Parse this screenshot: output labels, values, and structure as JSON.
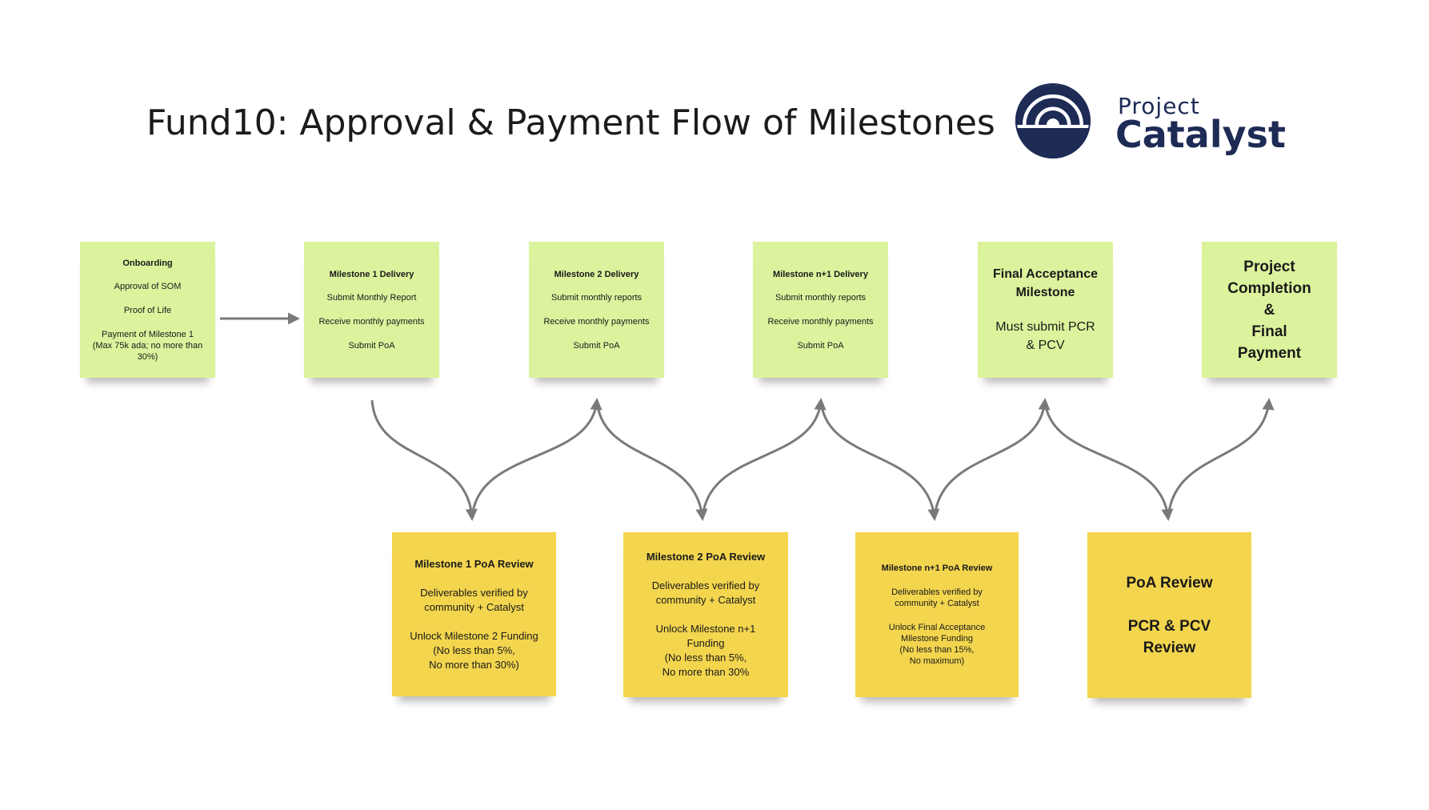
{
  "title": "Fund10: Approval & Payment Flow of Milestones",
  "logo": {
    "small": "Project",
    "big": "Catalyst",
    "color": "#1d2b55"
  },
  "colors": {
    "green_note": "#dcf39d",
    "yellow_note": "#f3d54e",
    "arrow": "#7a7a7a"
  },
  "top_notes": [
    {
      "title": "Onboarding",
      "lines": [
        "Approval of SOM",
        "Proof of Life",
        "Payment of Milestone 1\n(Max 75k ada; no more than 30%)"
      ]
    },
    {
      "title": "Milestone 1 Delivery",
      "lines": [
        "Submit Monthly Report",
        "Receive monthly payments",
        "Submit PoA"
      ]
    },
    {
      "title": "Milestone 2 Delivery",
      "lines": [
        "Submit monthly reports",
        "Receive monthly payments",
        "Submit PoA"
      ]
    },
    {
      "title": "Milestone n+1 Delivery",
      "lines": [
        "Submit monthly reports",
        "Receive monthly payments",
        "Submit PoA"
      ]
    },
    {
      "title": "Final Acceptance Milestone",
      "lines": [
        "Must submit PCR & PCV"
      ]
    },
    {
      "title": "Project Completion & Final Payment"
    }
  ],
  "bottom_notes": [
    {
      "title": "Milestone 1 PoA Review",
      "lines": [
        "Deliverables verified by community + Catalyst",
        "Unlock Milestone 2 Funding\n(No less than 5%,\nNo more than 30%)"
      ]
    },
    {
      "title": "Milestone 2 PoA Review",
      "lines": [
        "Deliverables verified by community + Catalyst",
        "Unlock Milestone n+1 Funding\n(No less than 5%,\nNo more than 30%"
      ]
    },
    {
      "title": "Milestone n+1 PoA Review",
      "lines": [
        "Deliverables verified by community + Catalyst",
        "Unlock Final Acceptance Milestone Funding\n(No less than 15%,\nNo maximum)"
      ]
    },
    {
      "title": "PoA Review",
      "lines": [
        "PCR & PCV Review"
      ]
    }
  ]
}
